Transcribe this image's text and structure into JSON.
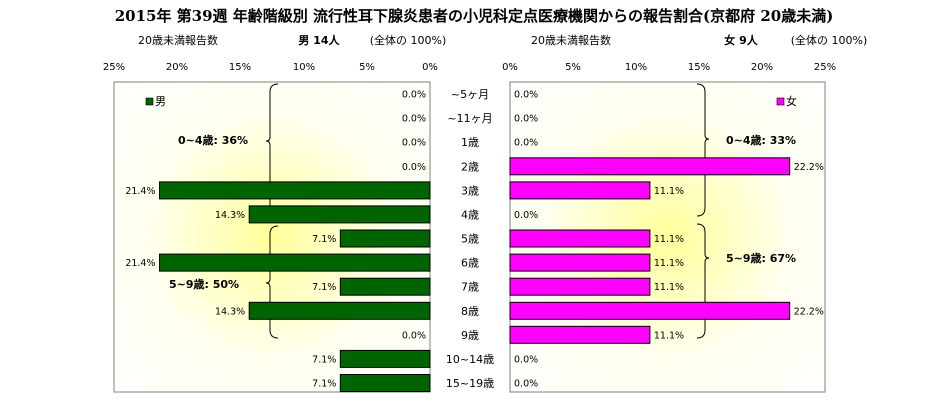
{
  "title": "2015年 第39週 年齢階級別 流行性耳下腺炎患者の小児科定点医療機関からの報告割合(京都府 20歳未満)",
  "left_panel": {
    "header_count_label": "20歳未満報告数",
    "header_summary_label": "男  14人",
    "header_total_label": "(全体の 100%)"
  },
  "right_panel": {
    "header_count_label": "20歳未満報告数",
    "header_summary_label": "女  9人",
    "header_total_label": "(全体の 100%)"
  },
  "chart_data": {
    "type": "bar",
    "orientation": "horizontal-butterfly",
    "categories": [
      "~5ヶ月",
      "~11ヶ月",
      "1歳",
      "2歳",
      "3歳",
      "4歳",
      "5歳",
      "6歳",
      "7歳",
      "8歳",
      "9歳",
      "10~14歳",
      "15~19歳"
    ],
    "series": [
      {
        "name": "男",
        "color": "#006400",
        "values": [
          0.0,
          0.0,
          0.0,
          0.0,
          21.4,
          14.3,
          7.1,
          21.4,
          7.1,
          14.3,
          0.0,
          7.1,
          7.1
        ],
        "labels": [
          "0.0%",
          "0.0%",
          "0.0%",
          "0.0%",
          "21.4%",
          "14.3%",
          "7.1%",
          "21.4%",
          "7.1%",
          "14.3%",
          "0.0%",
          "7.1%",
          "7.1%"
        ]
      },
      {
        "name": "女",
        "color": "#FF00FF",
        "values": [
          0.0,
          0.0,
          0.0,
          22.2,
          11.1,
          0.0,
          11.1,
          11.1,
          11.1,
          22.2,
          11.1,
          0.0,
          0.0
        ],
        "labels": [
          "0.0%",
          "0.0%",
          "0.0%",
          "22.2%",
          "11.1%",
          "0.0%",
          "11.1%",
          "11.1%",
          "11.1%",
          "22.2%",
          "11.1%",
          "0.0%",
          "0.0%"
        ]
      }
    ],
    "xlim": [
      0,
      25
    ],
    "ticks": [
      "25%",
      "20%",
      "15%",
      "10%",
      "5%",
      "0%"
    ],
    "right_ticks": [
      "0%",
      "5%",
      "10%",
      "15%",
      "20%",
      "25%"
    ],
    "group_annotations": {
      "male": [
        "0~4歳: 36%",
        "5~9歳: 50%"
      ],
      "female": [
        "0~4歳: 33%",
        "5~9歳: 67%"
      ]
    },
    "legend": {
      "male": "男",
      "female": "女"
    }
  }
}
